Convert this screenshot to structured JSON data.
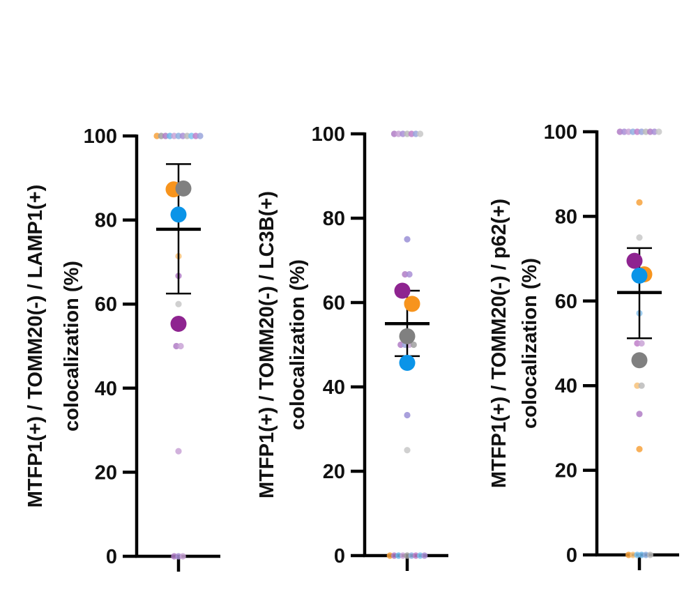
{
  "chart_data": [
    {
      "type": "scatter",
      "ylabel_lines": [
        "MTFP1(+) / TOMM20(-) / LAMP1(+)",
        "colocalization (%)"
      ],
      "yticks": [
        "0",
        "20",
        "40",
        "60",
        "80",
        "100"
      ],
      "ylim": [
        0,
        100
      ],
      "mean": 77.8,
      "error": [
        62.5,
        93.3
      ],
      "replicate_means": [
        {
          "color": "#F7941D",
          "value": 87.3
        },
        {
          "color": "#808080",
          "value": 87.5
        },
        {
          "color": "#0A94E8",
          "value": 81.3
        },
        {
          "color": "#8E2490",
          "value": 55.3
        }
      ],
      "cells": [
        {
          "value": 100,
          "color": "#F7A23C"
        },
        {
          "value": 100,
          "color": "#A0A0A0"
        },
        {
          "value": 100,
          "color": "#B07CC6"
        },
        {
          "value": 100,
          "color": "#6FB6E8"
        },
        {
          "value": 100,
          "color": "#C9A3D6"
        },
        {
          "value": 100,
          "color": "#8FB0E0"
        },
        {
          "value": 100,
          "color": "#A98FD6"
        },
        {
          "value": 100,
          "color": "#BBBBBB"
        },
        {
          "value": 100,
          "color": "#7EC3EF"
        },
        {
          "value": 100,
          "color": "#C07FC9"
        },
        {
          "value": 100,
          "color": "#9AA6DC"
        },
        {
          "value": 71.4,
          "color": "#F7C27A"
        },
        {
          "value": 66.7,
          "color": "#B07CC6"
        },
        {
          "value": 60,
          "color": "#C8C8C8"
        },
        {
          "value": 50,
          "color": "#B07CC6"
        },
        {
          "value": 50,
          "color": "#C9A3D6"
        },
        {
          "value": 25,
          "color": "#C9A3D6"
        },
        {
          "value": 0,
          "color": "#B07CC6"
        },
        {
          "value": 0,
          "color": "#A98FD6"
        },
        {
          "value": 0,
          "color": "#C9A3D6"
        }
      ]
    },
    {
      "type": "scatter",
      "ylabel_lines": [
        "MTFP1(+) / TOMM20(-) / LC3B(+)",
        "colocalization (%)"
      ],
      "yticks": [
        "0",
        "20",
        "40",
        "60",
        "80",
        "100"
      ],
      "ylim": [
        0,
        100
      ],
      "mean": 55.0,
      "error": [
        47.3,
        62.8
      ],
      "replicate_means": [
        {
          "color": "#8E2490",
          "value": 62.8
        },
        {
          "color": "#F7941D",
          "value": 59.7
        },
        {
          "color": "#808080",
          "value": 52.0
        },
        {
          "color": "#0A94E8",
          "value": 45.7
        }
      ],
      "cells": [
        {
          "value": 100,
          "color": "#B07CC6"
        },
        {
          "value": 100,
          "color": "#C9A3D6"
        },
        {
          "value": 100,
          "color": "#A98FD6"
        },
        {
          "value": 100,
          "color": "#BBBBBB"
        },
        {
          "value": 100,
          "color": "#C07FC9"
        },
        {
          "value": 100,
          "color": "#9AA6DC"
        },
        {
          "value": 100,
          "color": "#C8C8C8"
        },
        {
          "value": 75,
          "color": "#9A8FD6"
        },
        {
          "value": 66.7,
          "color": "#B07CC6"
        },
        {
          "value": 66.7,
          "color": "#A98FD6"
        },
        {
          "value": 60,
          "color": "#8FB0E0"
        },
        {
          "value": 50,
          "color": "#B07CC6"
        },
        {
          "value": 50,
          "color": "#9AA6DC"
        },
        {
          "value": 50,
          "color": "#C9A3D6"
        },
        {
          "value": 50,
          "color": "#A0A0A0"
        },
        {
          "value": 33.3,
          "color": "#9A8FD6"
        },
        {
          "value": 25,
          "color": "#C8C8C8"
        },
        {
          "value": 0,
          "color": "#F7A23C"
        },
        {
          "value": 0,
          "color": "#B07CC6"
        },
        {
          "value": 0,
          "color": "#6FB6E8"
        },
        {
          "value": 0,
          "color": "#C9A3D6"
        },
        {
          "value": 0,
          "color": "#A0A0A0"
        },
        {
          "value": 0,
          "color": "#8FB0E0"
        },
        {
          "value": 0,
          "color": "#C07FC9"
        },
        {
          "value": 0,
          "color": "#7EC3EF"
        },
        {
          "value": 0,
          "color": "#A98FD6"
        }
      ]
    },
    {
      "type": "scatter",
      "ylabel_lines": [
        "MTFP1(+) / TOMM20(-) / p62(+)",
        "colocalization (%)"
      ],
      "yticks": [
        "0",
        "20",
        "40",
        "60",
        "80",
        "100"
      ],
      "ylim": [
        0,
        100
      ],
      "mean": 62.0,
      "error": [
        51.2,
        72.5
      ],
      "replicate_means": [
        {
          "color": "#8E2490",
          "value": 69.5
        },
        {
          "color": "#F7941D",
          "value": 66.3
        },
        {
          "color": "#0A94E8",
          "value": 66.0
        },
        {
          "color": "#808080",
          "value": 46.0
        }
      ],
      "cells": [
        {
          "value": 100,
          "color": "#B07CC6"
        },
        {
          "value": 100,
          "color": "#A98FD6"
        },
        {
          "value": 100,
          "color": "#C9A3D6"
        },
        {
          "value": 100,
          "color": "#8FB0E0"
        },
        {
          "value": 100,
          "color": "#C07FC9"
        },
        {
          "value": 100,
          "color": "#9AA6DC"
        },
        {
          "value": 100,
          "color": "#BBBBBB"
        },
        {
          "value": 100,
          "color": "#B07CC6"
        },
        {
          "value": 100,
          "color": "#A98FD6"
        },
        {
          "value": 100,
          "color": "#C8C8C8"
        },
        {
          "value": 83.3,
          "color": "#F7A23C"
        },
        {
          "value": 75,
          "color": "#C8C8C8"
        },
        {
          "value": 57.1,
          "color": "#8FC7EF"
        },
        {
          "value": 50,
          "color": "#C07FC9"
        },
        {
          "value": 50,
          "color": "#C9A3D6"
        },
        {
          "value": 40,
          "color": "#F7C27A"
        },
        {
          "value": 40,
          "color": "#BBBBBB"
        },
        {
          "value": 33.3,
          "color": "#B07CC6"
        },
        {
          "value": 25,
          "color": "#F7A23C"
        },
        {
          "value": 0,
          "color": "#F7A23C"
        },
        {
          "value": 0,
          "color": "#F7C27A"
        },
        {
          "value": 0,
          "color": "#7EC3EF"
        },
        {
          "value": 0,
          "color": "#6FB6E8"
        },
        {
          "value": 0,
          "color": "#8FB0E0"
        },
        {
          "value": 0,
          "color": "#BBBBBB"
        }
      ]
    }
  ]
}
